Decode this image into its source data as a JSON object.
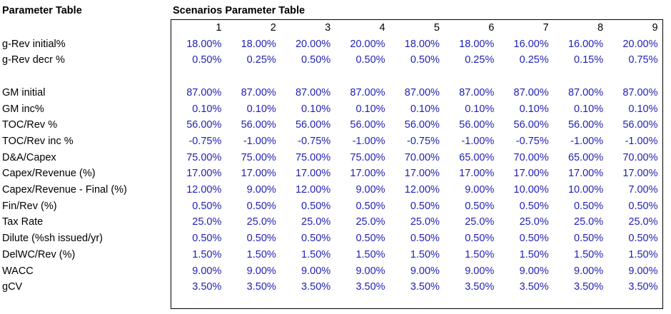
{
  "titles": {
    "left": "Parameter Table",
    "right": "Scenarios Parameter Table"
  },
  "scenarios": [
    "1",
    "2",
    "3",
    "4",
    "5",
    "6",
    "7",
    "8",
    "9"
  ],
  "rows": [
    {
      "label": "g-Rev initial%",
      "values": [
        "18.00%",
        "18.00%",
        "20.00%",
        "20.00%",
        "18.00%",
        "18.00%",
        "16.00%",
        "16.00%",
        "20.00%"
      ]
    },
    {
      "label": "g-Rev decr %",
      "values": [
        "0.50%",
        "0.25%",
        "0.50%",
        "0.50%",
        "0.50%",
        "0.25%",
        "0.25%",
        "0.15%",
        "0.75%"
      ]
    },
    {
      "label": "",
      "values": [
        "",
        "",
        "",
        "",
        "",
        "",
        "",
        "",
        ""
      ]
    },
    {
      "label": "GM initial",
      "values": [
        "87.00%",
        "87.00%",
        "87.00%",
        "87.00%",
        "87.00%",
        "87.00%",
        "87.00%",
        "87.00%",
        "87.00%"
      ]
    },
    {
      "label": "GM inc%",
      "values": [
        "0.10%",
        "0.10%",
        "0.10%",
        "0.10%",
        "0.10%",
        "0.10%",
        "0.10%",
        "0.10%",
        "0.10%"
      ]
    },
    {
      "label": "TOC/Rev %",
      "values": [
        "56.00%",
        "56.00%",
        "56.00%",
        "56.00%",
        "56.00%",
        "56.00%",
        "56.00%",
        "56.00%",
        "56.00%"
      ]
    },
    {
      "label": "TOC/Rev inc %",
      "values": [
        "-0.75%",
        "-1.00%",
        "-0.75%",
        "-1.00%",
        "-0.75%",
        "-1.00%",
        "-0.75%",
        "-1.00%",
        "-1.00%"
      ]
    },
    {
      "label": "D&A/Capex",
      "values": [
        "75.00%",
        "75.00%",
        "75.00%",
        "75.00%",
        "70.00%",
        "65.00%",
        "70.00%",
        "65.00%",
        "70.00%"
      ]
    },
    {
      "label": "Capex/Revenue (%)",
      "values": [
        "17.00%",
        "17.00%",
        "17.00%",
        "17.00%",
        "17.00%",
        "17.00%",
        "17.00%",
        "17.00%",
        "17.00%"
      ]
    },
    {
      "label": "Capex/Revenue - Final (%)",
      "values": [
        "12.00%",
        "9.00%",
        "12.00%",
        "9.00%",
        "12.00%",
        "9.00%",
        "10.00%",
        "10.00%",
        "7.00%"
      ]
    },
    {
      "label": "Fin/Rev (%)",
      "values": [
        "0.50%",
        "0.50%",
        "0.50%",
        "0.50%",
        "0.50%",
        "0.50%",
        "0.50%",
        "0.50%",
        "0.50%"
      ]
    },
    {
      "label": "Tax Rate",
      "values": [
        "25.0%",
        "25.0%",
        "25.0%",
        "25.0%",
        "25.0%",
        "25.0%",
        "25.0%",
        "25.0%",
        "25.0%"
      ]
    },
    {
      "label": "Dilute (%sh issued/yr)",
      "values": [
        "0.50%",
        "0.50%",
        "0.50%",
        "0.50%",
        "0.50%",
        "0.50%",
        "0.50%",
        "0.50%",
        "0.50%"
      ]
    },
    {
      "label": "DelWC/Rev (%)",
      "values": [
        "1.50%",
        "1.50%",
        "1.50%",
        "1.50%",
        "1.50%",
        "1.50%",
        "1.50%",
        "1.50%",
        "1.50%"
      ]
    },
    {
      "label": "WACC",
      "values": [
        "9.00%",
        "9.00%",
        "9.00%",
        "9.00%",
        "9.00%",
        "9.00%",
        "9.00%",
        "9.00%",
        "9.00%"
      ]
    },
    {
      "label": "gCV",
      "values": [
        "3.50%",
        "3.50%",
        "3.50%",
        "3.50%",
        "3.50%",
        "3.50%",
        "3.50%",
        "3.50%",
        "3.50%"
      ]
    }
  ],
  "colors": {
    "value_text": "#1f1fb4",
    "label_text": "#000000",
    "frame": "#000000"
  }
}
